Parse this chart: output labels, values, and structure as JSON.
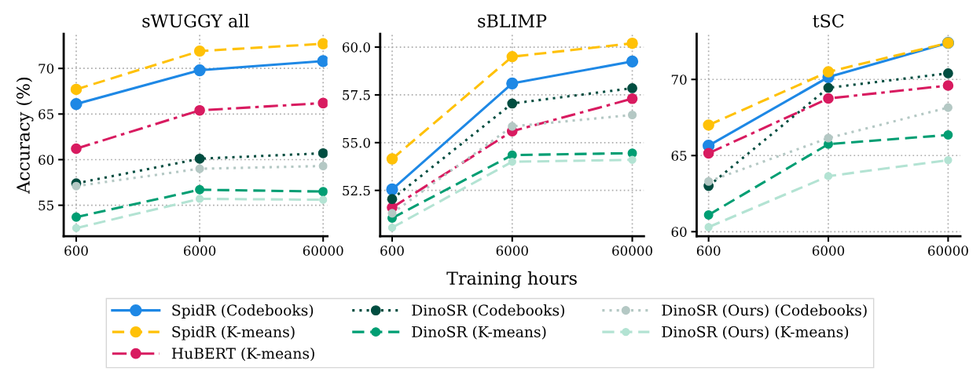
{
  "chart_data": [
    {
      "type": "line",
      "title": "sWUGGY all",
      "ylabel": "Accuracy (%)",
      "log": "x",
      "grid": true,
      "marker": "circle",
      "legend": "bottom",
      "x": [
        600,
        6000,
        60000
      ],
      "xlim": [
        475,
        65000
      ],
      "xticks": [
        600,
        6000,
        60000
      ],
      "ylim": [
        51.6,
        73.8
      ],
      "yticks": [
        55,
        60,
        65,
        70
      ],
      "series": [
        {
          "name": "SpidR (Codebooks)",
          "color": "#1e88e5",
          "line_style": "solid",
          "values": [
            66.1,
            69.8,
            70.8
          ]
        },
        {
          "name": "SpidR (K-means)",
          "color": "#ffc107",
          "line_style": "dashed",
          "values": [
            67.7,
            71.9,
            72.7
          ]
        },
        {
          "name": "HuBERT (K-means)",
          "color": "#d81b60",
          "line_style": "dashdot",
          "values": [
            61.2,
            65.4,
            66.2
          ]
        },
        {
          "name": "DinoSR (Codebooks)",
          "color": "#004d40",
          "line_style": "dotted",
          "values": [
            57.4,
            60.1,
            60.7
          ]
        },
        {
          "name": "DinoSR (K-means)",
          "color": "#009e73",
          "line_style": "dashed",
          "values": [
            53.7,
            56.7,
            56.5
          ]
        },
        {
          "name": "DinoSR (Ours) (Codebooks)",
          "color": "#b4c8c4",
          "line_style": "dotted",
          "values": [
            57.1,
            59.0,
            59.3
          ]
        },
        {
          "name": "DinoSR (Ours) (K-means)",
          "color": "#b3e3d3",
          "line_style": "dashed",
          "values": [
            52.5,
            55.7,
            55.6
          ]
        }
      ]
    },
    {
      "type": "line",
      "title": "sBLIMP",
      "xlabel": "Training hours",
      "log": "x",
      "grid": true,
      "marker": "circle",
      "x": [
        600,
        6000,
        60000
      ],
      "xlim": [
        477,
        75000
      ],
      "xticks": [
        600,
        6000,
        60000
      ],
      "ylim": [
        50.1,
        60.7
      ],
      "yticks": [
        {
          "value": 52.5,
          "label": "52.5"
        },
        {
          "value": 55.0,
          "label": "55.0"
        },
        {
          "value": 57.5,
          "label": "57.5"
        },
        {
          "value": 60.0,
          "label": "60.0"
        }
      ],
      "series": [
        {
          "color": "#1e88e5",
          "line_style": "solid",
          "values": [
            52.55,
            58.1,
            59.25
          ]
        },
        {
          "color": "#ffc107",
          "line_style": "dashed",
          "values": [
            54.15,
            59.5,
            60.2
          ]
        },
        {
          "color": "#d81b60",
          "line_style": "dashdot",
          "values": [
            51.6,
            55.6,
            57.3
          ]
        },
        {
          "color": "#004d40",
          "line_style": "dotted",
          "values": [
            52.05,
            57.05,
            57.85
          ]
        },
        {
          "color": "#009e73",
          "line_style": "dashed",
          "values": [
            51.05,
            54.35,
            54.45
          ]
        },
        {
          "color": "#b4c8c4",
          "line_style": "dotted",
          "values": [
            51.3,
            55.85,
            56.45
          ]
        },
        {
          "color": "#b3e3d3",
          "line_style": "dashed",
          "values": [
            50.55,
            54.0,
            54.1
          ]
        }
      ]
    },
    {
      "type": "line",
      "title": "tSC",
      "log": "x",
      "grid": true,
      "marker": "circle",
      "x": [
        600,
        6000,
        60000
      ],
      "xlim": [
        477,
        76000
      ],
      "xticks": [
        600,
        6000,
        60000
      ],
      "ylim": [
        59.7,
        73.0
      ],
      "yticks": [
        60,
        65,
        70
      ],
      "series": [
        {
          "color": "#1e88e5",
          "line_style": "solid",
          "values": [
            65.65,
            70.15,
            72.4
          ]
        },
        {
          "color": "#ffc107",
          "line_style": "dashed",
          "values": [
            67.0,
            70.5,
            72.4
          ]
        },
        {
          "color": "#d81b60",
          "line_style": "dashdot",
          "values": [
            65.15,
            68.75,
            69.6
          ]
        },
        {
          "color": "#004d40",
          "line_style": "dotted",
          "values": [
            63.0,
            69.45,
            70.4
          ]
        },
        {
          "color": "#009e73",
          "line_style": "dashed",
          "values": [
            61.1,
            65.75,
            66.35
          ]
        },
        {
          "color": "#b4c8c4",
          "line_style": "dotted",
          "values": [
            63.3,
            66.15,
            68.15
          ]
        },
        {
          "color": "#b3e3d3",
          "line_style": "dashed",
          "values": [
            60.3,
            63.65,
            64.7
          ]
        }
      ]
    }
  ]
}
